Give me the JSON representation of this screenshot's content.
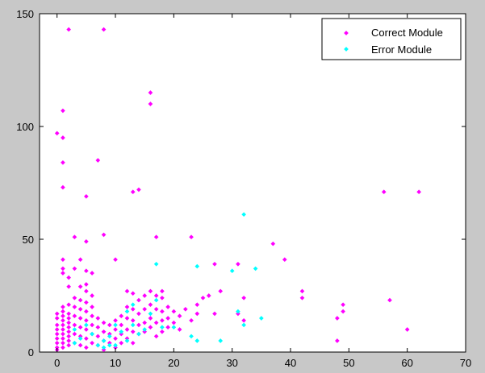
{
  "chart_data": {
    "type": "scatter",
    "xlim": [
      -3,
      70
    ],
    "ylim": [
      0,
      150
    ],
    "x_ticks": [
      "0",
      "10",
      "20",
      "30",
      "40",
      "50",
      "60",
      "70"
    ],
    "y_ticks": [
      "0",
      "50",
      "100",
      "150"
    ],
    "grid": false,
    "legend_position": "top-right",
    "series": [
      {
        "name": "Correct Module",
        "color": "#ff00ff",
        "points": [
          [
            2,
            143
          ],
          [
            8,
            143
          ],
          [
            1,
            107
          ],
          [
            0,
            97
          ],
          [
            1,
            95
          ],
          [
            1,
            84
          ],
          [
            1,
            73
          ],
          [
            5,
            69
          ],
          [
            7,
            85
          ],
          [
            16,
            115
          ],
          [
            16,
            110
          ],
          [
            13,
            71
          ],
          [
            14,
            72
          ],
          [
            8,
            52
          ],
          [
            3,
            51
          ],
          [
            5,
            49
          ],
          [
            17,
            51
          ],
          [
            23,
            51
          ],
          [
            1,
            41
          ],
          [
            1,
            37
          ],
          [
            1,
            35
          ],
          [
            3,
            37
          ],
          [
            4,
            41
          ],
          [
            5,
            36
          ],
          [
            6,
            35
          ],
          [
            10,
            41
          ],
          [
            2,
            33
          ],
          [
            2,
            29
          ],
          [
            4,
            29
          ],
          [
            5,
            30
          ],
          [
            0,
            17
          ],
          [
            0,
            15
          ],
          [
            0,
            12
          ],
          [
            0,
            10
          ],
          [
            0,
            8
          ],
          [
            0,
            6
          ],
          [
            0,
            4
          ],
          [
            0,
            2
          ],
          [
            0,
            1
          ],
          [
            1,
            20
          ],
          [
            1,
            18
          ],
          [
            1,
            16
          ],
          [
            1,
            14
          ],
          [
            1,
            12
          ],
          [
            1,
            10
          ],
          [
            1,
            8
          ],
          [
            1,
            6
          ],
          [
            1,
            4
          ],
          [
            1,
            2
          ],
          [
            2,
            21
          ],
          [
            2,
            17
          ],
          [
            2,
            15
          ],
          [
            2,
            13
          ],
          [
            2,
            11
          ],
          [
            2,
            9
          ],
          [
            2,
            7
          ],
          [
            2,
            5
          ],
          [
            2,
            3
          ],
          [
            3,
            24
          ],
          [
            3,
            20
          ],
          [
            3,
            16
          ],
          [
            3,
            12
          ],
          [
            3,
            8
          ],
          [
            3,
            4
          ],
          [
            4,
            23
          ],
          [
            4,
            19
          ],
          [
            4,
            15
          ],
          [
            4,
            11
          ],
          [
            4,
            7
          ],
          [
            4,
            3
          ],
          [
            5,
            27
          ],
          [
            5,
            22
          ],
          [
            5,
            18
          ],
          [
            5,
            14
          ],
          [
            5,
            10
          ],
          [
            5,
            6
          ],
          [
            5,
            2
          ],
          [
            6,
            25
          ],
          [
            6,
            20
          ],
          [
            6,
            16
          ],
          [
            6,
            12
          ],
          [
            6,
            8
          ],
          [
            6,
            4
          ],
          [
            7,
            15
          ],
          [
            7,
            11
          ],
          [
            7,
            7
          ],
          [
            7,
            3
          ],
          [
            8,
            13
          ],
          [
            8,
            9
          ],
          [
            8,
            5
          ],
          [
            8,
            1
          ],
          [
            9,
            12
          ],
          [
            9,
            8
          ],
          [
            9,
            4
          ],
          [
            10,
            14
          ],
          [
            10,
            10
          ],
          [
            10,
            6
          ],
          [
            10,
            2
          ],
          [
            11,
            16
          ],
          [
            11,
            12
          ],
          [
            11,
            8
          ],
          [
            11,
            4
          ],
          [
            12,
            27
          ],
          [
            12,
            20
          ],
          [
            12,
            15
          ],
          [
            12,
            10
          ],
          [
            12,
            6
          ],
          [
            13,
            26
          ],
          [
            13,
            19
          ],
          [
            13,
            14
          ],
          [
            13,
            9
          ],
          [
            13,
            4
          ],
          [
            14,
            23
          ],
          [
            14,
            17
          ],
          [
            14,
            12
          ],
          [
            14,
            8
          ],
          [
            15,
            25
          ],
          [
            15,
            19
          ],
          [
            15,
            13
          ],
          [
            15,
            9
          ],
          [
            16,
            27
          ],
          [
            16,
            21
          ],
          [
            16,
            15
          ],
          [
            16,
            11
          ],
          [
            17,
            25
          ],
          [
            17,
            19
          ],
          [
            17,
            13
          ],
          [
            17,
            7
          ],
          [
            18,
            27
          ],
          [
            18,
            24
          ],
          [
            18,
            18
          ],
          [
            18,
            14
          ],
          [
            18,
            9
          ],
          [
            19,
            20
          ],
          [
            19,
            15
          ],
          [
            19,
            11
          ],
          [
            20,
            18
          ],
          [
            20,
            13
          ],
          [
            21,
            16
          ],
          [
            21,
            10
          ],
          [
            22,
            19
          ],
          [
            23,
            14
          ],
          [
            24,
            21
          ],
          [
            24,
            17
          ],
          [
            25,
            24
          ],
          [
            26,
            25
          ],
          [
            27,
            39
          ],
          [
            27,
            17
          ],
          [
            28,
            27
          ],
          [
            31,
            39
          ],
          [
            31,
            17
          ],
          [
            32,
            24
          ],
          [
            32,
            14
          ],
          [
            37,
            48
          ],
          [
            39,
            41
          ],
          [
            42,
            27
          ],
          [
            42,
            24
          ],
          [
            48,
            15
          ],
          [
            48,
            5
          ],
          [
            49,
            21
          ],
          [
            49,
            18
          ],
          [
            56,
            71
          ],
          [
            57,
            23
          ],
          [
            60,
            10
          ],
          [
            62,
            71
          ]
        ]
      },
      {
        "name": "Error Module",
        "color": "#00ffff",
        "points": [
          [
            32,
            61
          ],
          [
            17,
            39
          ],
          [
            24,
            38
          ],
          [
            30,
            36
          ],
          [
            34,
            37
          ],
          [
            31,
            18
          ],
          [
            32,
            12
          ],
          [
            35,
            15
          ],
          [
            16,
            17
          ],
          [
            17,
            23
          ],
          [
            18,
            11
          ],
          [
            20,
            11
          ],
          [
            24,
            5
          ],
          [
            23,
            7
          ],
          [
            28,
            5
          ],
          [
            3,
            4
          ],
          [
            3,
            10
          ],
          [
            4,
            6
          ],
          [
            5,
            12
          ],
          [
            6,
            8
          ],
          [
            7,
            3
          ],
          [
            8,
            5
          ],
          [
            8,
            2
          ],
          [
            9,
            7
          ],
          [
            9,
            3
          ],
          [
            10,
            3
          ],
          [
            10,
            12
          ],
          [
            11,
            9
          ],
          [
            12,
            5
          ],
          [
            13,
            21
          ],
          [
            13,
            12
          ],
          [
            14,
            8
          ],
          [
            15,
            10
          ],
          [
            12,
            18
          ]
        ]
      }
    ]
  }
}
